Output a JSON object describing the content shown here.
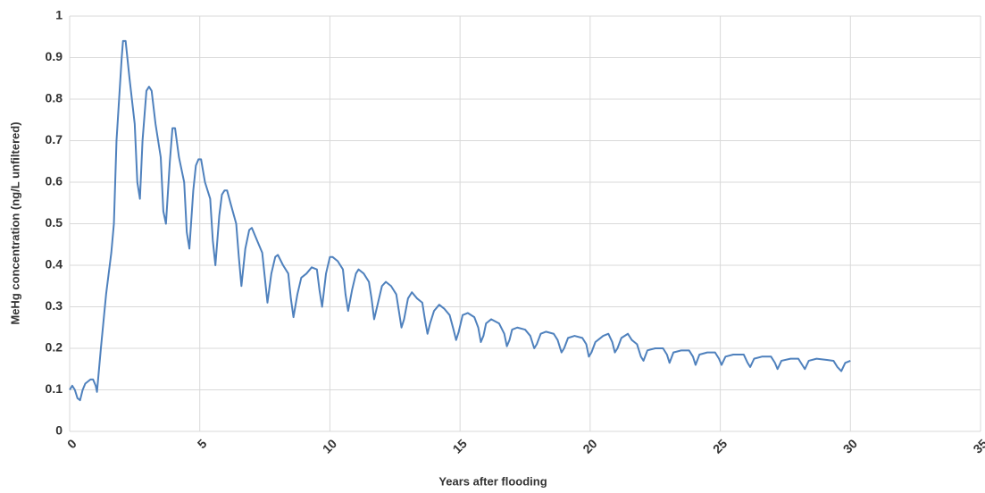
{
  "chart_data": {
    "type": "line",
    "xlabel": "Years after flooding",
    "ylabel": "MeHg concentration (ng/L unfiltered)",
    "color": "#4f81bd",
    "grid": true,
    "xlim": [
      0,
      35
    ],
    "xticks": [
      0,
      5,
      10,
      15,
      20,
      25,
      30,
      35
    ],
    "ylim": [
      0,
      1
    ],
    "yticks": [
      0,
      0.1,
      0.2,
      0.3,
      0.4,
      0.5,
      0.6,
      0.7,
      0.8,
      0.9,
      1
    ],
    "x": [
      0,
      0.1,
      0.2,
      0.3,
      0.4,
      0.5,
      0.6,
      0.8,
      0.9,
      1.0,
      1.05,
      1.2,
      1.4,
      1.6,
      1.7,
      1.8,
      1.9,
      2.0,
      2.05,
      2.15,
      2.3,
      2.5,
      2.6,
      2.7,
      2.8,
      2.95,
      3.05,
      3.15,
      3.3,
      3.5,
      3.6,
      3.7,
      3.85,
      3.95,
      4.05,
      4.2,
      4.4,
      4.5,
      4.6,
      4.75,
      4.85,
      4.95,
      5.05,
      5.2,
      5.4,
      5.5,
      5.6,
      5.75,
      5.85,
      5.95,
      6.05,
      6.2,
      6.4,
      6.5,
      6.6,
      6.75,
      6.9,
      7.0,
      7.2,
      7.4,
      7.5,
      7.6,
      7.75,
      7.9,
      8.0,
      8.2,
      8.4,
      8.5,
      8.6,
      8.75,
      8.9,
      9.1,
      9.3,
      9.5,
      9.6,
      9.7,
      9.85,
      10.0,
      10.1,
      10.3,
      10.5,
      10.6,
      10.7,
      10.85,
      11.0,
      11.1,
      11.3,
      11.5,
      11.6,
      11.7,
      11.85,
      12.0,
      12.15,
      12.35,
      12.55,
      12.65,
      12.75,
      12.85,
      13.0,
      13.15,
      13.35,
      13.55,
      13.65,
      13.75,
      13.85,
      14.0,
      14.2,
      14.4,
      14.6,
      14.75,
      14.85,
      14.95,
      15.1,
      15.3,
      15.55,
      15.7,
      15.8,
      15.9,
      16.0,
      16.2,
      16.5,
      16.7,
      16.8,
      16.9,
      17.0,
      17.2,
      17.5,
      17.7,
      17.85,
      17.95,
      18.1,
      18.3,
      18.6,
      18.75,
      18.9,
      19.0,
      19.15,
      19.4,
      19.7,
      19.85,
      19.95,
      20.05,
      20.2,
      20.5,
      20.7,
      20.85,
      20.95,
      21.05,
      21.2,
      21.45,
      21.6,
      21.8,
      21.95,
      22.05,
      22.2,
      22.5,
      22.8,
      22.95,
      23.05,
      23.2,
      23.5,
      23.8,
      23.95,
      24.05,
      24.2,
      24.5,
      24.8,
      24.95,
      25.05,
      25.2,
      25.5,
      25.9,
      26.05,
      26.15,
      26.3,
      26.6,
      26.95,
      27.1,
      27.2,
      27.35,
      27.7,
      28.0,
      28.15,
      28.25,
      28.4,
      28.7,
      29.1,
      29.35,
      29.5,
      29.65,
      29.8,
      30.0
    ],
    "values": [
      0.1,
      0.11,
      0.1,
      0.08,
      0.075,
      0.1,
      0.115,
      0.125,
      0.125,
      0.11,
      0.095,
      0.2,
      0.33,
      0.43,
      0.5,
      0.7,
      0.8,
      0.9,
      0.94,
      0.94,
      0.85,
      0.74,
      0.6,
      0.56,
      0.7,
      0.82,
      0.83,
      0.82,
      0.74,
      0.66,
      0.53,
      0.5,
      0.65,
      0.73,
      0.73,
      0.66,
      0.6,
      0.48,
      0.44,
      0.58,
      0.64,
      0.655,
      0.655,
      0.6,
      0.56,
      0.46,
      0.4,
      0.52,
      0.57,
      0.58,
      0.58,
      0.545,
      0.5,
      0.42,
      0.35,
      0.44,
      0.485,
      0.49,
      0.46,
      0.43,
      0.37,
      0.31,
      0.38,
      0.42,
      0.425,
      0.4,
      0.38,
      0.32,
      0.275,
      0.33,
      0.37,
      0.38,
      0.395,
      0.39,
      0.34,
      0.3,
      0.38,
      0.42,
      0.42,
      0.41,
      0.39,
      0.33,
      0.29,
      0.34,
      0.38,
      0.39,
      0.38,
      0.36,
      0.32,
      0.27,
      0.31,
      0.35,
      0.36,
      0.35,
      0.33,
      0.29,
      0.25,
      0.27,
      0.32,
      0.335,
      0.32,
      0.31,
      0.27,
      0.235,
      0.26,
      0.29,
      0.305,
      0.295,
      0.28,
      0.245,
      0.22,
      0.24,
      0.28,
      0.285,
      0.275,
      0.25,
      0.215,
      0.23,
      0.26,
      0.27,
      0.26,
      0.235,
      0.205,
      0.22,
      0.245,
      0.25,
      0.245,
      0.23,
      0.2,
      0.21,
      0.235,
      0.24,
      0.235,
      0.22,
      0.19,
      0.2,
      0.225,
      0.23,
      0.225,
      0.21,
      0.18,
      0.19,
      0.215,
      0.23,
      0.235,
      0.215,
      0.19,
      0.2,
      0.225,
      0.235,
      0.22,
      0.21,
      0.18,
      0.17,
      0.195,
      0.2,
      0.2,
      0.185,
      0.165,
      0.19,
      0.195,
      0.195,
      0.18,
      0.16,
      0.185,
      0.19,
      0.19,
      0.175,
      0.16,
      0.18,
      0.185,
      0.185,
      0.165,
      0.155,
      0.175,
      0.18,
      0.18,
      0.165,
      0.15,
      0.17,
      0.175,
      0.175,
      0.16,
      0.15,
      0.17,
      0.175,
      0.172,
      0.17,
      0.155,
      0.145,
      0.165,
      0.17
    ]
  }
}
